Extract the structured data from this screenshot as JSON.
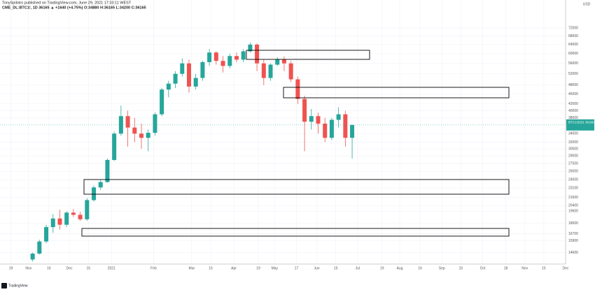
{
  "header": {
    "publisher": "TonySpilotro published on TradingView.com, June 29, 2021 17:33:11 WEST",
    "symbol": "CME_DL:BTC1!, 1D 36165 ▲ +1640 (+4.75%) O:34880 H:36165 L:34200 C:36165"
  },
  "footer": {
    "brand": "TradingView"
  },
  "chart_data": {
    "type": "candlestick",
    "log_scale": true,
    "grid": true,
    "up_color": "#26a69a",
    "down_color": "#ef5350",
    "price_label": "BTC1!2021",
    "last_price": 36165,
    "price_unit": "USD",
    "x": [
      16,
      21,
      26,
      31,
      36,
      41,
      46,
      51,
      56,
      61,
      66,
      71,
      76,
      81,
      86,
      91,
      96,
      101,
      106,
      111,
      116,
      121,
      126,
      131,
      136,
      141,
      146,
      151,
      156,
      161,
      166,
      171,
      176,
      181,
      186,
      191,
      196,
      201,
      206,
      211,
      216,
      221,
      226,
      231,
      236,
      241,
      246,
      251
    ],
    "open": [
      13900,
      14500,
      15800,
      17500,
      18600,
      17800,
      19400,
      19100,
      18500,
      21200,
      23200,
      24100,
      28200,
      34000,
      38500,
      35500,
      34000,
      33000,
      34200,
      39000,
      46500,
      48500,
      52000,
      56000,
      47500,
      50500,
      56500,
      60500,
      57000,
      55000,
      59000,
      57500,
      61000,
      64000,
      56000,
      50500,
      55500,
      57500,
      56000,
      50000,
      43500,
      37000,
      38500,
      36500,
      33000,
      37500,
      39000,
      33000
    ],
    "high": [
      14600,
      16000,
      17800,
      19200,
      19800,
      19600,
      19900,
      19500,
      21500,
      23500,
      24500,
      28500,
      34500,
      41500,
      40000,
      38000,
      36500,
      35000,
      39500,
      47000,
      49500,
      53000,
      58000,
      57500,
      52000,
      57000,
      62000,
      61000,
      59000,
      60000,
      60500,
      62000,
      65000,
      64500,
      57500,
      56000,
      58500,
      58800,
      57000,
      51000,
      44500,
      40500,
      39500,
      38000,
      38000,
      41000,
      40000,
      36200
    ],
    "low": [
      13700,
      14400,
      15600,
      16800,
      17200,
      17500,
      18800,
      18300,
      18300,
      21000,
      22800,
      24000,
      28000,
      33500,
      31000,
      32000,
      30500,
      30000,
      33500,
      38500,
      44000,
      47000,
      51000,
      45500,
      46500,
      49500,
      55000,
      55500,
      52500,
      54000,
      56500,
      56500,
      60500,
      53000,
      48000,
      49500,
      55000,
      53000,
      49000,
      42000,
      30000,
      35000,
      34000,
      32000,
      32500,
      35500,
      31000,
      28500
    ],
    "close": [
      14500,
      15800,
      17500,
      18600,
      17800,
      19400,
      19100,
      18500,
      21200,
      23200,
      24100,
      28200,
      34000,
      38500,
      35500,
      34000,
      33000,
      34200,
      39000,
      46500,
      48500,
      52000,
      56000,
      47500,
      50500,
      56500,
      60500,
      57000,
      55000,
      59000,
      57500,
      61000,
      64000,
      56000,
      50500,
      55500,
      57500,
      56000,
      50000,
      43500,
      37000,
      38500,
      36500,
      33000,
      37500,
      39000,
      33000,
      36165
    ],
    "xlim": [
      -8,
      408
    ],
    "xticks": [
      {
        "value": 0,
        "label": "19"
      },
      {
        "value": 13,
        "label": "Nov"
      },
      {
        "value": 28,
        "label": "16"
      },
      {
        "value": 43,
        "label": "Dec"
      },
      {
        "value": 57,
        "label": "15"
      },
      {
        "value": 74,
        "label": "2021"
      },
      {
        "value": 105,
        "label": "Feb"
      },
      {
        "value": 133,
        "label": "Mar"
      },
      {
        "value": 147,
        "label": "15"
      },
      {
        "value": 164,
        "label": "Apr"
      },
      {
        "value": 182,
        "label": "19"
      },
      {
        "value": 194,
        "label": "May"
      },
      {
        "value": 210,
        "label": "17"
      },
      {
        "value": 225,
        "label": "Jun"
      },
      {
        "value": 239,
        "label": "15"
      },
      {
        "value": 255,
        "label": "Jul"
      },
      {
        "value": 273,
        "label": "19"
      },
      {
        "value": 286,
        "label": "Aug"
      },
      {
        "value": 301,
        "label": "16"
      },
      {
        "value": 317,
        "label": "Sep"
      },
      {
        "value": 331,
        "label": "15"
      },
      {
        "value": 347,
        "label": "Oct"
      },
      {
        "value": 364,
        "label": "18"
      },
      {
        "value": 378,
        "label": "Nov"
      },
      {
        "value": 392,
        "label": "15"
      },
      {
        "value": 408,
        "label": "Dec"
      }
    ],
    "ylim": [
      13000,
      83600
    ],
    "yticks": [
      72000,
      68000,
      64000,
      60000,
      56000,
      52000,
      48000,
      45000,
      42000,
      40000,
      38000,
      34000,
      32000,
      30500,
      29000,
      27500,
      26000,
      24500,
      23100,
      21600,
      20400,
      19600,
      18000,
      16700,
      15900,
      14600
    ]
  }
}
